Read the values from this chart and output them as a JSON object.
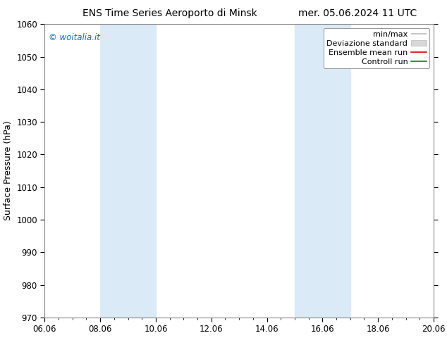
{
  "title_left": "ENS Time Series Aeroporto di Minsk",
  "title_right": "mer. 05.06.2024 11 UTC",
  "ylabel": "Surface Pressure (hPa)",
  "ylim": [
    970,
    1060
  ],
  "yticks": [
    970,
    980,
    990,
    1000,
    1010,
    1020,
    1030,
    1040,
    1050,
    1060
  ],
  "xlim_start": 0,
  "xlim_end": 14,
  "xtick_labels": [
    "06.06",
    "08.06",
    "10.06",
    "12.06",
    "14.06",
    "16.06",
    "18.06",
    "20.06"
  ],
  "xtick_positions": [
    0,
    2,
    4,
    6,
    8,
    10,
    12,
    14
  ],
  "shaded_bands": [
    {
      "x_start": 2,
      "x_end": 4
    },
    {
      "x_start": 9,
      "x_end": 11
    }
  ],
  "band_color": "#daeaf7",
  "watermark": "© woitalia.it",
  "watermark_color": "#1a6aad",
  "legend_items": [
    {
      "label": "min/max",
      "color": "#aaaaaa",
      "style": "line"
    },
    {
      "label": "Deviazione standard",
      "color": "#cccccc",
      "style": "band"
    },
    {
      "label": "Ensemble mean run",
      "color": "#ff0000",
      "style": "line"
    },
    {
      "label": "Controll run",
      "color": "#00aa00",
      "style": "line"
    }
  ],
  "background_color": "#ffffff",
  "plot_background": "#ffffff",
  "title_fontsize": 10,
  "axis_fontsize": 9,
  "tick_fontsize": 8.5,
  "legend_fontsize": 8
}
